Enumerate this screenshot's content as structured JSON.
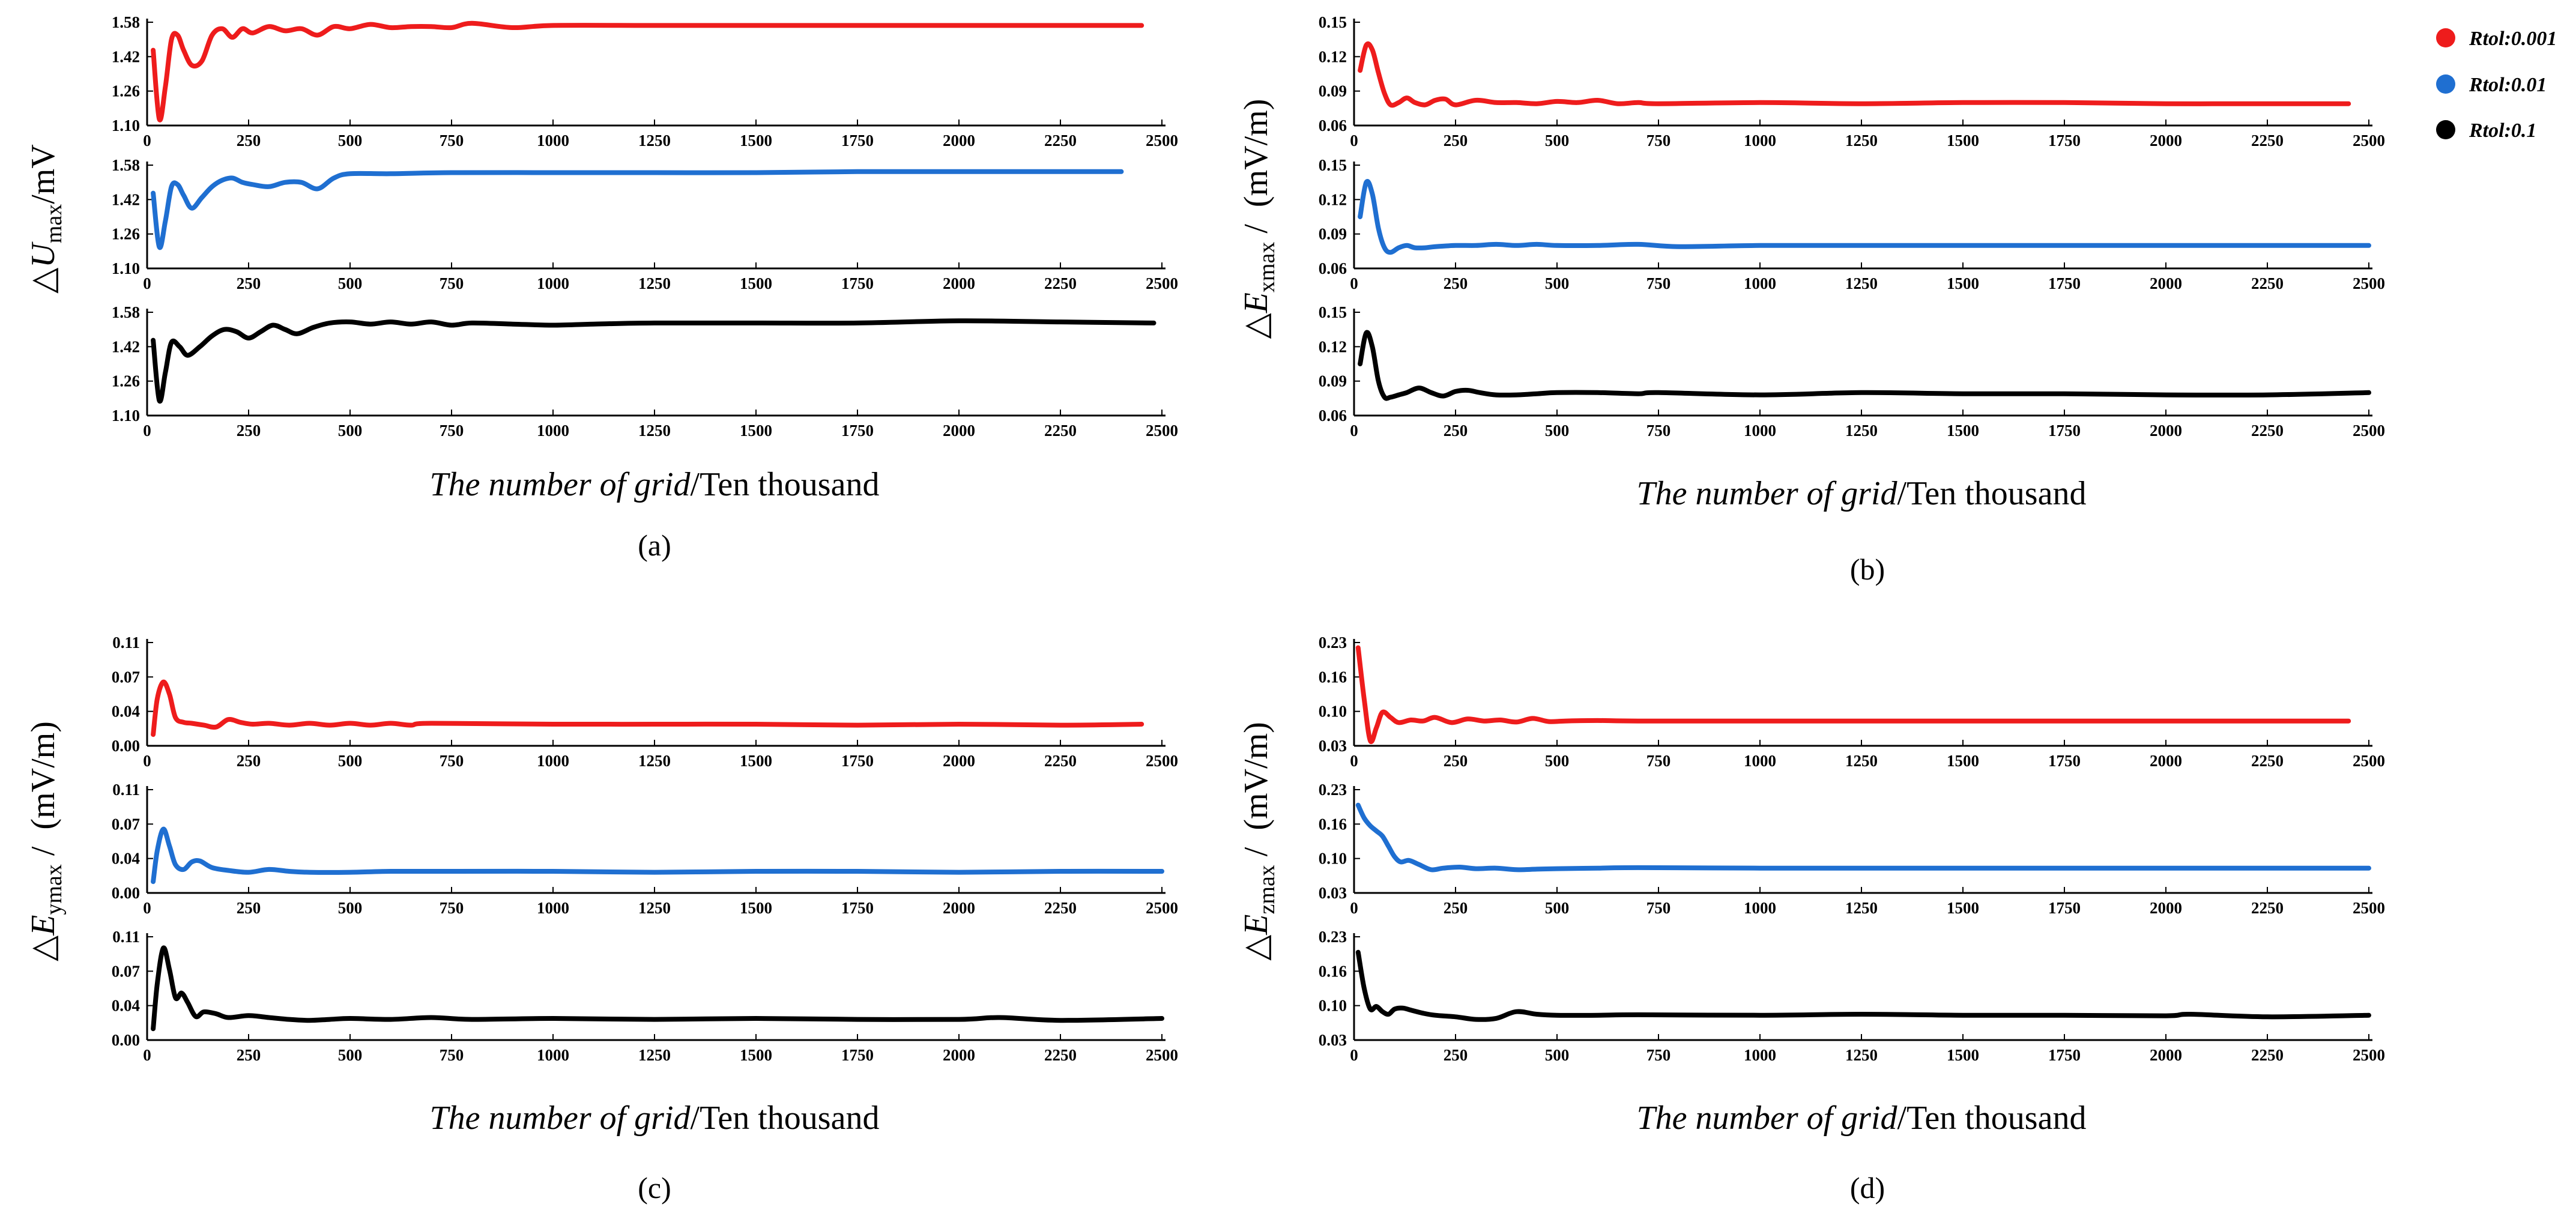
{
  "legend": {
    "items": [
      {
        "label": "Rtol:0.001",
        "color": "#ee1c1c"
      },
      {
        "label": "Rtol:0.01",
        "color": "#1f6fd1"
      },
      {
        "label": "Rtol:0.1",
        "color": "#000000"
      }
    ]
  },
  "chart_data": [
    {
      "type": "line",
      "panel_label": "(a)",
      "xlabel_italic": "The number of grid",
      "xlabel_rest": "/Ten thousand",
      "ylabel": {
        "prefix": "△",
        "symbol": "U",
        "subscript": "max",
        "unit": "/mV"
      },
      "xlim": [
        0,
        2500
      ],
      "xticks": [
        "0",
        "250",
        "500",
        "750",
        "1000",
        "1250",
        "1500",
        "1750",
        "2000",
        "2250",
        "2500"
      ],
      "subplots": [
        {
          "series": "Rtol:0.001",
          "color": "#ee1c1c",
          "ylim": [
            1.1,
            1.58
          ],
          "yticks": [
            "1.58",
            "1.42",
            "1.26",
            "1.10"
          ],
          "x": [
            15,
            30,
            45,
            60,
            75,
            90,
            110,
            135,
            160,
            185,
            210,
            235,
            260,
            300,
            340,
            380,
            420,
            460,
            500,
            550,
            600,
            650,
            700,
            750,
            800,
            900,
            1000,
            1250,
            1500,
            1750,
            2000,
            2250,
            2450
          ],
          "y": [
            1.45,
            1.13,
            1.28,
            1.5,
            1.52,
            1.45,
            1.38,
            1.4,
            1.52,
            1.55,
            1.51,
            1.55,
            1.53,
            1.56,
            1.54,
            1.55,
            1.52,
            1.56,
            1.55,
            1.57,
            1.555,
            1.56,
            1.56,
            1.555,
            1.575,
            1.555,
            1.565,
            1.565,
            1.565,
            1.565,
            1.565,
            1.565,
            1.565
          ]
        },
        {
          "series": "Rtol:0.01",
          "color": "#1f6fd1",
          "ylim": [
            1.1,
            1.58
          ],
          "yticks": [
            "1.58",
            "1.42",
            "1.26",
            "1.10"
          ],
          "x": [
            15,
            30,
            45,
            60,
            75,
            90,
            110,
            135,
            160,
            185,
            210,
            235,
            260,
            300,
            340,
            380,
            420,
            460,
            500,
            600,
            750,
            1000,
            1250,
            1500,
            1750,
            2000,
            2250,
            2400
          ],
          "y": [
            1.45,
            1.2,
            1.32,
            1.48,
            1.49,
            1.44,
            1.38,
            1.43,
            1.48,
            1.51,
            1.52,
            1.5,
            1.49,
            1.48,
            1.5,
            1.5,
            1.47,
            1.52,
            1.54,
            1.54,
            1.545,
            1.545,
            1.545,
            1.545,
            1.55,
            1.55,
            1.55,
            1.55
          ]
        },
        {
          "series": "Rtol:0.1",
          "color": "#000000",
          "ylim": [
            1.1,
            1.58
          ],
          "yticks": [
            "1.58",
            "1.42",
            "1.26",
            "1.10"
          ],
          "x": [
            15,
            30,
            45,
            60,
            80,
            100,
            130,
            160,
            190,
            220,
            250,
            280,
            310,
            340,
            370,
            410,
            450,
            500,
            550,
            600,
            650,
            700,
            750,
            800,
            900,
            1000,
            1100,
            1250,
            1500,
            1750,
            2000,
            2250,
            2480
          ],
          "y": [
            1.45,
            1.17,
            1.3,
            1.44,
            1.42,
            1.38,
            1.42,
            1.47,
            1.5,
            1.49,
            1.46,
            1.49,
            1.52,
            1.5,
            1.48,
            1.51,
            1.53,
            1.535,
            1.525,
            1.535,
            1.525,
            1.535,
            1.52,
            1.53,
            1.525,
            1.52,
            1.525,
            1.53,
            1.53,
            1.53,
            1.54,
            1.535,
            1.53
          ]
        }
      ]
    },
    {
      "type": "line",
      "panel_label": "(b)",
      "xlabel_italic": "The number of grid",
      "xlabel_rest": "/Ten thousand",
      "ylabel": {
        "prefix": "△",
        "symbol": "E",
        "subscript": "xmax",
        "unit": " /  (mV/m)"
      },
      "xlim": [
        0,
        2500
      ],
      "xticks": [
        "0",
        "250",
        "500",
        "750",
        "1000",
        "1250",
        "1500",
        "1750",
        "2000",
        "2250",
        "2500"
      ],
      "subplots": [
        {
          "series": "Rtol:0.001",
          "color": "#ee1c1c",
          "ylim": [
            0.06,
            0.15
          ],
          "yticks": [
            "0.15",
            "0.12",
            "0.09",
            "0.06"
          ],
          "x": [
            15,
            30,
            45,
            60,
            75,
            90,
            110,
            130,
            150,
            175,
            200,
            225,
            250,
            300,
            350,
            400,
            450,
            500,
            550,
            600,
            650,
            700,
            750,
            1000,
            1250,
            1500,
            1750,
            2000,
            2250,
            2450
          ],
          "y": [
            0.108,
            0.13,
            0.126,
            0.106,
            0.088,
            0.078,
            0.08,
            0.084,
            0.08,
            0.078,
            0.082,
            0.083,
            0.078,
            0.082,
            0.08,
            0.08,
            0.079,
            0.081,
            0.08,
            0.082,
            0.079,
            0.08,
            0.079,
            0.08,
            0.079,
            0.08,
            0.08,
            0.079,
            0.079,
            0.079
          ]
        },
        {
          "series": "Rtol:0.01",
          "color": "#1f6fd1",
          "ylim": [
            0.06,
            0.15
          ],
          "yticks": [
            "0.15",
            "0.12",
            "0.09",
            "0.06"
          ],
          "x": [
            15,
            30,
            45,
            60,
            75,
            90,
            110,
            130,
            150,
            175,
            200,
            250,
            300,
            350,
            400,
            450,
            500,
            600,
            700,
            800,
            1000,
            1250,
            1500,
            1750,
            2000,
            2250,
            2500
          ],
          "y": [
            0.105,
            0.135,
            0.125,
            0.095,
            0.078,
            0.074,
            0.078,
            0.08,
            0.078,
            0.078,
            0.079,
            0.08,
            0.08,
            0.081,
            0.08,
            0.081,
            0.08,
            0.08,
            0.081,
            0.079,
            0.08,
            0.08,
            0.08,
            0.08,
            0.08,
            0.08,
            0.08
          ]
        },
        {
          "series": "Rtol:0.1",
          "color": "#000000",
          "ylim": [
            0.06,
            0.15
          ],
          "yticks": [
            "0.15",
            "0.12",
            "0.09",
            "0.06"
          ],
          "x": [
            15,
            30,
            45,
            60,
            75,
            90,
            110,
            130,
            160,
            190,
            220,
            250,
            280,
            310,
            350,
            400,
            450,
            500,
            600,
            700,
            750,
            1000,
            1250,
            1500,
            1750,
            2000,
            2250,
            2500
          ],
          "y": [
            0.105,
            0.132,
            0.12,
            0.09,
            0.076,
            0.076,
            0.078,
            0.08,
            0.084,
            0.08,
            0.077,
            0.081,
            0.082,
            0.08,
            0.078,
            0.078,
            0.079,
            0.08,
            0.08,
            0.079,
            0.08,
            0.078,
            0.08,
            0.079,
            0.079,
            0.078,
            0.078,
            0.08
          ]
        }
      ]
    },
    {
      "type": "line",
      "panel_label": "(c)",
      "xlabel_italic": "The number of grid",
      "xlabel_rest": "/Ten thousand",
      "ylabel": {
        "prefix": "△",
        "symbol": "E",
        "subscript": "ymax",
        "unit": " /  (mV/m)"
      },
      "xlim": [
        0,
        2500
      ],
      "xticks": [
        "0",
        "250",
        "500",
        "750",
        "1000",
        "1250",
        "1500",
        "1750",
        "2000",
        "2250",
        "2500"
      ],
      "subplots": [
        {
          "series": "Rtol:0.001",
          "color": "#ee1c1c",
          "ylim": [
            0.0,
            0.11
          ],
          "yticks": [
            "0.11",
            "0.07",
            "0.04",
            "0.00"
          ],
          "x": [
            15,
            25,
            40,
            55,
            70,
            90,
            110,
            140,
            170,
            200,
            230,
            260,
            300,
            350,
            400,
            450,
            500,
            550,
            600,
            650,
            700,
            1000,
            1250,
            1500,
            1750,
            2000,
            2250,
            2450
          ],
          "y": [
            0.012,
            0.05,
            0.068,
            0.055,
            0.03,
            0.025,
            0.024,
            0.022,
            0.02,
            0.028,
            0.025,
            0.023,
            0.024,
            0.022,
            0.024,
            0.022,
            0.024,
            0.022,
            0.024,
            0.022,
            0.024,
            0.023,
            0.023,
            0.023,
            0.022,
            0.023,
            0.022,
            0.023
          ]
        },
        {
          "series": "Rtol:0.01",
          "color": "#1f6fd1",
          "ylim": [
            0.0,
            0.11
          ],
          "yticks": [
            "0.11",
            "0.07",
            "0.04",
            "0.00"
          ],
          "x": [
            15,
            25,
            40,
            55,
            70,
            90,
            110,
            130,
            160,
            200,
            250,
            300,
            350,
            400,
            500,
            600,
            750,
            1000,
            1250,
            1500,
            1750,
            2000,
            2250,
            2500
          ],
          "y": [
            0.012,
            0.045,
            0.068,
            0.05,
            0.03,
            0.025,
            0.033,
            0.034,
            0.027,
            0.024,
            0.022,
            0.025,
            0.023,
            0.022,
            0.022,
            0.023,
            0.023,
            0.023,
            0.022,
            0.023,
            0.023,
            0.022,
            0.023,
            0.023
          ]
        },
        {
          "series": "Rtol:0.1",
          "color": "#000000",
          "ylim": [
            0.0,
            0.11
          ],
          "yticks": [
            "0.11",
            "0.07",
            "0.04",
            "0.00"
          ],
          "x": [
            15,
            25,
            40,
            55,
            70,
            85,
            100,
            120,
            140,
            170,
            200,
            250,
            300,
            350,
            400,
            450,
            500,
            600,
            700,
            800,
            1000,
            1250,
            1500,
            1750,
            2000,
            2100,
            2250,
            2500
          ],
          "y": [
            0.012,
            0.06,
            0.098,
            0.075,
            0.045,
            0.05,
            0.04,
            0.025,
            0.03,
            0.028,
            0.024,
            0.026,
            0.024,
            0.022,
            0.021,
            0.022,
            0.023,
            0.022,
            0.024,
            0.022,
            0.023,
            0.022,
            0.023,
            0.022,
            0.022,
            0.024,
            0.021,
            0.023
          ]
        }
      ]
    },
    {
      "type": "line",
      "panel_label": "(d)",
      "xlabel_italic": "The number of grid",
      "xlabel_rest": "/Ten thousand",
      "ylabel": {
        "prefix": "△",
        "symbol": "E",
        "subscript": "zmax",
        "unit": " /  (mV/m)"
      },
      "xlim": [
        0,
        2500
      ],
      "xticks": [
        "0",
        "250",
        "500",
        "750",
        "1000",
        "1250",
        "1500",
        "1750",
        "2000",
        "2250",
        "2500"
      ],
      "subplots": [
        {
          "series": "Rtol:0.001",
          "color": "#ee1c1c",
          "ylim": [
            0.03,
            0.23
          ],
          "yticks": [
            "0.23",
            "0.16",
            "0.10",
            "0.03"
          ],
          "x": [
            10,
            25,
            40,
            55,
            70,
            90,
            110,
            140,
            170,
            200,
            240,
            280,
            320,
            360,
            400,
            440,
            480,
            520,
            600,
            700,
            1000,
            1250,
            1500,
            1750,
            2000,
            2250,
            2450
          ],
          "y": [
            0.22,
            0.12,
            0.04,
            0.065,
            0.095,
            0.085,
            0.075,
            0.08,
            0.078,
            0.085,
            0.075,
            0.082,
            0.078,
            0.08,
            0.076,
            0.083,
            0.077,
            0.078,
            0.079,
            0.078,
            0.078,
            0.078,
            0.078,
            0.078,
            0.078,
            0.078,
            0.078
          ]
        },
        {
          "series": "Rtol:0.01",
          "color": "#1f6fd1",
          "ylim": [
            0.03,
            0.23
          ],
          "yticks": [
            "0.23",
            "0.16",
            "0.10",
            "0.03"
          ],
          "x": [
            10,
            25,
            40,
            55,
            70,
            85,
            100,
            115,
            135,
            160,
            190,
            220,
            260,
            300,
            350,
            400,
            450,
            500,
            600,
            700,
            1000,
            1250,
            1500,
            1750,
            2000,
            2250,
            2500
          ],
          "y": [
            0.2,
            0.175,
            0.16,
            0.15,
            0.14,
            0.12,
            0.1,
            0.09,
            0.093,
            0.085,
            0.075,
            0.078,
            0.08,
            0.077,
            0.078,
            0.075,
            0.076,
            0.077,
            0.078,
            0.079,
            0.078,
            0.078,
            0.078,
            0.078,
            0.078,
            0.078,
            0.078
          ]
        },
        {
          "series": "Rtol:0.1",
          "color": "#000000",
          "ylim": [
            0.03,
            0.23
          ],
          "yticks": [
            "0.23",
            "0.16",
            "0.10",
            "0.03"
          ],
          "x": [
            10,
            25,
            40,
            55,
            70,
            85,
            100,
            120,
            140,
            170,
            200,
            250,
            300,
            350,
            400,
            450,
            500,
            600,
            700,
            1000,
            1250,
            1500,
            1750,
            2000,
            2060,
            2250,
            2500
          ],
          "y": [
            0.2,
            0.13,
            0.09,
            0.095,
            0.085,
            0.08,
            0.09,
            0.092,
            0.088,
            0.082,
            0.078,
            0.075,
            0.07,
            0.072,
            0.085,
            0.08,
            0.078,
            0.078,
            0.079,
            0.078,
            0.08,
            0.078,
            0.078,
            0.077,
            0.08,
            0.075,
            0.078
          ]
        }
      ]
    }
  ]
}
